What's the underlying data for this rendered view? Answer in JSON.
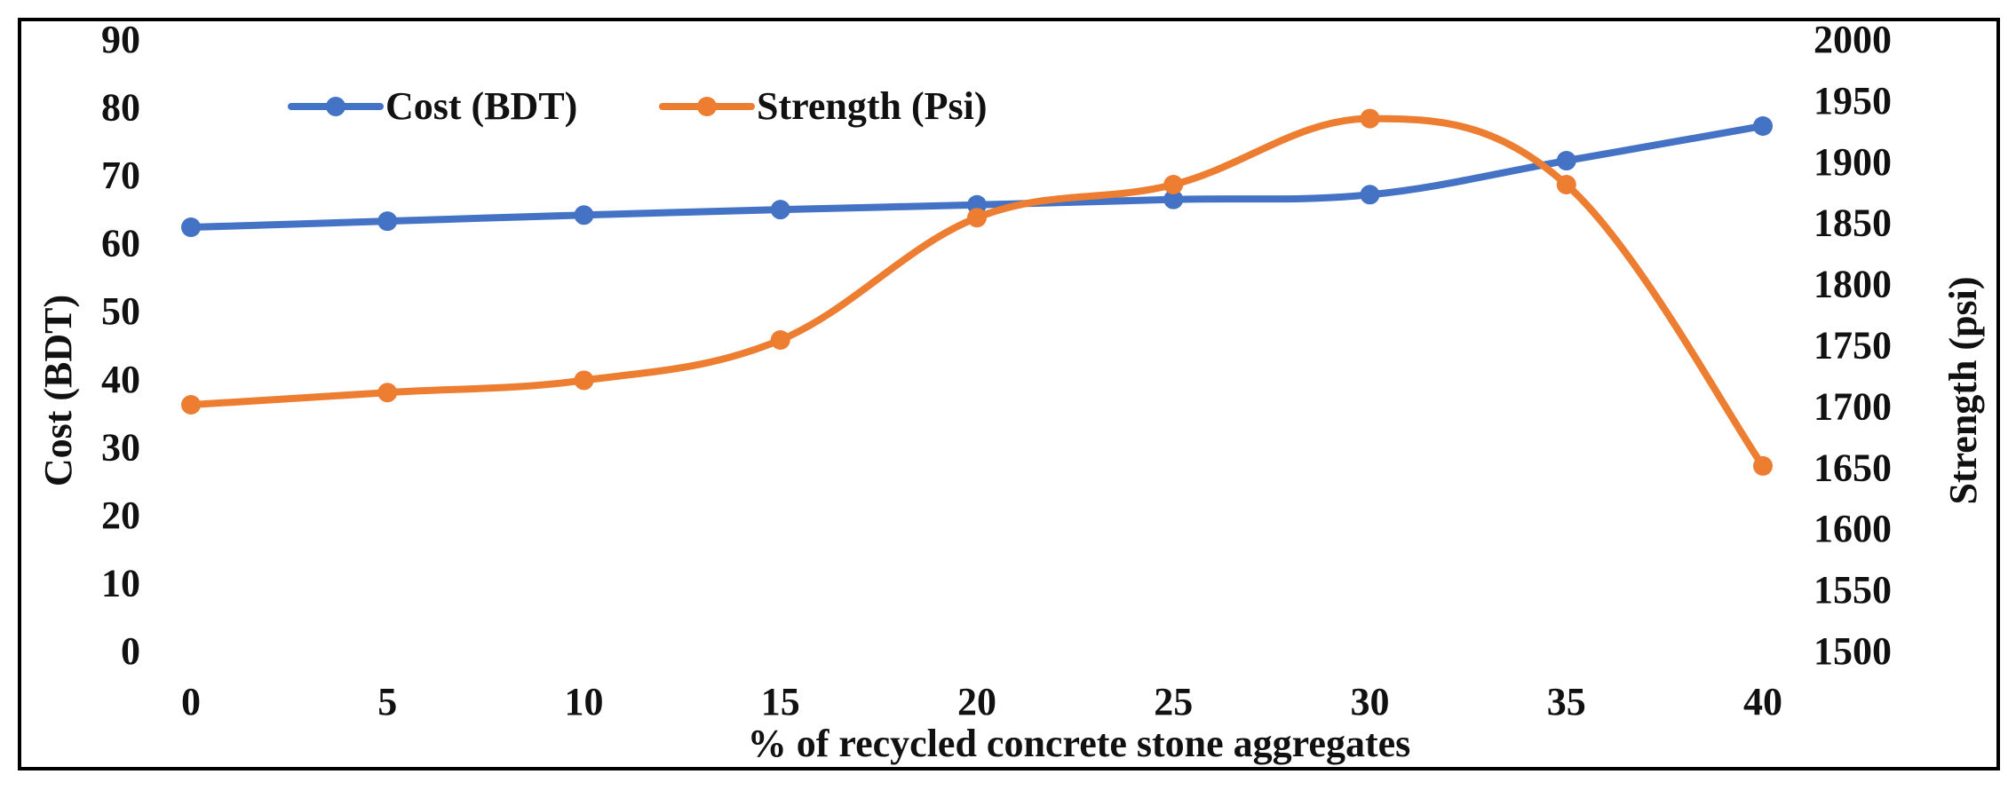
{
  "chart_data": {
    "type": "line",
    "title": "",
    "xlabel": "% of recycled concrete stone aggregates",
    "ylabel_left": "Cost (BDT)",
    "ylabel_right": "Strength (psi)",
    "x": [
      0,
      5,
      10,
      15,
      20,
      25,
      30,
      35,
      40
    ],
    "ylim_left": [
      0,
      90
    ],
    "yticks_left": [
      0,
      10,
      20,
      30,
      40,
      50,
      60,
      70,
      80,
      90
    ],
    "ylim_right": [
      1500,
      2000
    ],
    "yticks_right": [
      1500,
      1550,
      1600,
      1650,
      1700,
      1750,
      1800,
      1850,
      1900,
      1950,
      2000
    ],
    "legend_position": "top-left",
    "series": [
      {
        "name": "Cost (BDT)",
        "axis": "left",
        "color": "#4472C4",
        "smooth": true,
        "values": [
          62.3,
          63.2,
          64.1,
          64.9,
          65.6,
          66.4,
          67.1,
          72.1,
          77.2
        ]
      },
      {
        "name": "Strength (Psi)",
        "axis": "right",
        "color": "#ED7D31",
        "smooth": true,
        "values": [
          1701,
          1711,
          1721,
          1754,
          1854,
          1881,
          1935,
          1881,
          1651
        ]
      }
    ]
  }
}
